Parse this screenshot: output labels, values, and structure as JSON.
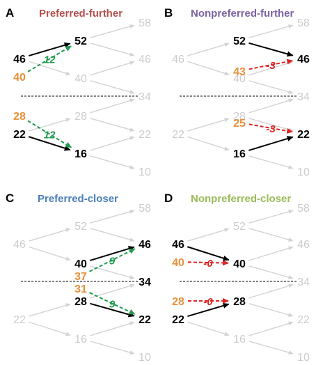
{
  "colors": {
    "title_A": "#b5514f",
    "title_B": "#7b63a4",
    "title_C": "#4b7fb8",
    "title_D": "#9bbb59",
    "faded": "#d3d3d3",
    "active": "#000000",
    "orange": "#e8903a",
    "green": "#1f9a4c",
    "red": "#e02424"
  },
  "panels": [
    {
      "letter": "A",
      "title": "Preferred-further",
      "nums": {
        "n0_0": "46",
        "n0_1": "22",
        "n1_0": "52",
        "n1_1": "40",
        "n1_2": "28",
        "n1_3": "16",
        "n2_0": "58",
        "n2_1": "46",
        "n2_2": "34",
        "n2_3": "22",
        "n2_4": "10"
      },
      "highlight": [
        "n0_0",
        "n0_1",
        "n1_0",
        "n1_3"
      ],
      "extras": [
        {
          "text": "40",
          "color": "orange",
          "pos": "upper"
        },
        {
          "text": "28",
          "color": "orange",
          "pos": "lower"
        }
      ],
      "arrows": [
        {
          "from": "n0_0",
          "to": "n1_0",
          "kind": "solid"
        },
        {
          "from": "n0_1",
          "to": "n1_3",
          "kind": "solid"
        },
        {
          "from": "ex_upper",
          "to": "n1_0",
          "kind": "green",
          "label": "12"
        },
        {
          "from": "ex_lower",
          "to": "n1_3",
          "kind": "green",
          "label": "12"
        }
      ]
    },
    {
      "letter": "B",
      "title": "Nonpreferred-further",
      "nums": {
        "n0_0": "46",
        "n0_1": "22",
        "n1_0": "52",
        "n1_1": "40",
        "n1_2": "28",
        "n1_3": "16",
        "n2_0": "58",
        "n2_1": "46",
        "n2_2": "34",
        "n2_3": "22",
        "n2_4": "10"
      },
      "highlight": [
        "n1_0",
        "n1_3",
        "n2_1",
        "n2_3"
      ],
      "extras": [
        {
          "text": "43",
          "color": "orange",
          "pos": "upper"
        },
        {
          "text": "25",
          "color": "orange",
          "pos": "lower"
        }
      ],
      "arrows": [
        {
          "from": "n1_0",
          "to": "n2_1",
          "kind": "solid"
        },
        {
          "from": "n1_3",
          "to": "n2_3",
          "kind": "solid"
        },
        {
          "from": "ex_upper",
          "to": "n2_1",
          "kind": "red",
          "label": "-3"
        },
        {
          "from": "ex_lower",
          "to": "n2_3",
          "kind": "red",
          "label": "-3"
        }
      ]
    },
    {
      "letter": "C",
      "title": "Preferred-closer",
      "nums": {
        "n0_0": "46",
        "n0_1": "22",
        "n1_0": "52",
        "n1_1": "40",
        "n1_2": "28",
        "n1_3": "16",
        "n2_0": "58",
        "n2_1": "46",
        "n2_2": "34",
        "n2_3": "22",
        "n2_4": "10"
      },
      "highlight": [
        "n1_1",
        "n1_2",
        "n2_1",
        "n2_2",
        "n2_3"
      ],
      "extras": [
        {
          "text": "37",
          "color": "orange",
          "pos": "upper"
        },
        {
          "text": "31",
          "color": "orange",
          "pos": "lower"
        }
      ],
      "arrows": [
        {
          "from": "n1_1",
          "to": "n2_1",
          "kind": "solid"
        },
        {
          "from": "n1_2",
          "to": "n2_3",
          "kind": "solid"
        },
        {
          "from": "ex_upper",
          "to": "n2_1",
          "kind": "green",
          "label": "9"
        },
        {
          "from": "ex_lower",
          "to": "n2_3",
          "kind": "green",
          "label": "9"
        }
      ]
    },
    {
      "letter": "D",
      "title": "Nonpreferred-closer",
      "nums": {
        "n0_0": "46",
        "n0_1": "22",
        "n1_0": "52",
        "n1_1": "40",
        "n1_2": "28",
        "n1_3": "16",
        "n2_0": "58",
        "n2_1": "46",
        "n2_2": "34",
        "n2_3": "22",
        "n2_4": "10"
      },
      "highlight": [
        "n0_0",
        "n0_1",
        "n1_1",
        "n1_2"
      ],
      "extras": [
        {
          "text": "40",
          "color": "orange",
          "pos": "upper"
        },
        {
          "text": "28",
          "color": "orange",
          "pos": "lower"
        }
      ],
      "arrows": [
        {
          "from": "n0_0",
          "to": "n1_1",
          "kind": "solid"
        },
        {
          "from": "n0_1",
          "to": "n1_2",
          "kind": "solid"
        },
        {
          "from": "ex_upper",
          "to": "n1_1",
          "kind": "red",
          "label": "-0"
        },
        {
          "from": "ex_lower",
          "to": "n1_2",
          "kind": "red",
          "label": "-0"
        }
      ]
    }
  ]
}
